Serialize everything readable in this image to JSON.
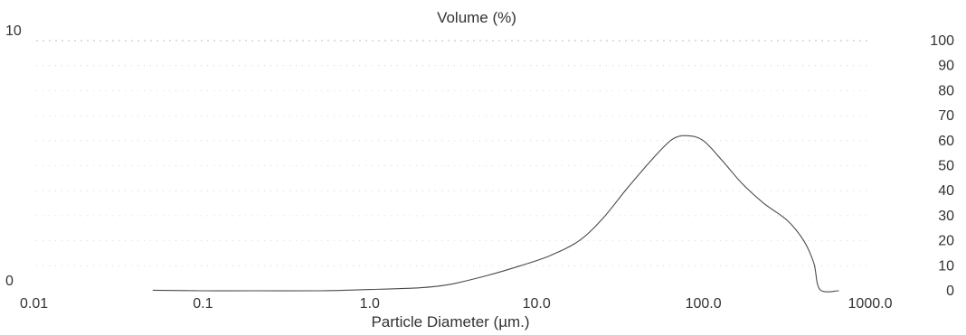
{
  "chart_data": {
    "type": "line",
    "title": "Volume (%)",
    "xlabel": "Particle Diameter (µm.)",
    "x_scale": "log",
    "xlim": [
      0.01,
      1000.0
    ],
    "x_ticks": [
      {
        "value": 0.01,
        "label": "0.01"
      },
      {
        "value": 0.1,
        "label": "0.1"
      },
      {
        "value": 1.0,
        "label": "1.0"
      },
      {
        "value": 10.0,
        "label": "10.0"
      },
      {
        "value": 100.0,
        "label": "100.0"
      },
      {
        "value": 1000.0,
        "label": "1000.0"
      }
    ],
    "y_left": {
      "ylim": [
        0,
        10
      ],
      "tick_labels": [
        "0",
        "10"
      ]
    },
    "y_right": {
      "ylim": [
        0,
        100
      ],
      "tick_labels": [
        "0",
        "10",
        "20",
        "30",
        "40",
        "50",
        "60",
        "70",
        "80",
        "90",
        "100"
      ]
    },
    "grid": true,
    "series": [
      {
        "points": [
          {
            "x": 0.05,
            "y": 0.02
          },
          {
            "x": 0.1,
            "y": 0.0
          },
          {
            "x": 0.2,
            "y": 0.0
          },
          {
            "x": 0.5,
            "y": 0.0
          },
          {
            "x": 1.0,
            "y": 0.05
          },
          {
            "x": 2.0,
            "y": 0.12
          },
          {
            "x": 3.0,
            "y": 0.25
          },
          {
            "x": 5.0,
            "y": 0.6
          },
          {
            "x": 8.0,
            "y": 1.0
          },
          {
            "x": 12.0,
            "y": 1.4
          },
          {
            "x": 18.0,
            "y": 2.0
          },
          {
            "x": 25.0,
            "y": 2.9
          },
          {
            "x": 35.0,
            "y": 4.1
          },
          {
            "x": 50.0,
            "y": 5.3
          },
          {
            "x": 65.0,
            "y": 6.05
          },
          {
            "x": 80.0,
            "y": 6.2
          },
          {
            "x": 100.0,
            "y": 6.0
          },
          {
            "x": 130.0,
            "y": 5.2
          },
          {
            "x": 170.0,
            "y": 4.3
          },
          {
            "x": 230.0,
            "y": 3.5
          },
          {
            "x": 320.0,
            "y": 2.8
          },
          {
            "x": 400.0,
            "y": 2.0
          },
          {
            "x": 460.0,
            "y": 1.1
          },
          {
            "x": 500.0,
            "y": 0.05
          },
          {
            "x": 650.0,
            "y": 0.0
          }
        ]
      }
    ]
  }
}
